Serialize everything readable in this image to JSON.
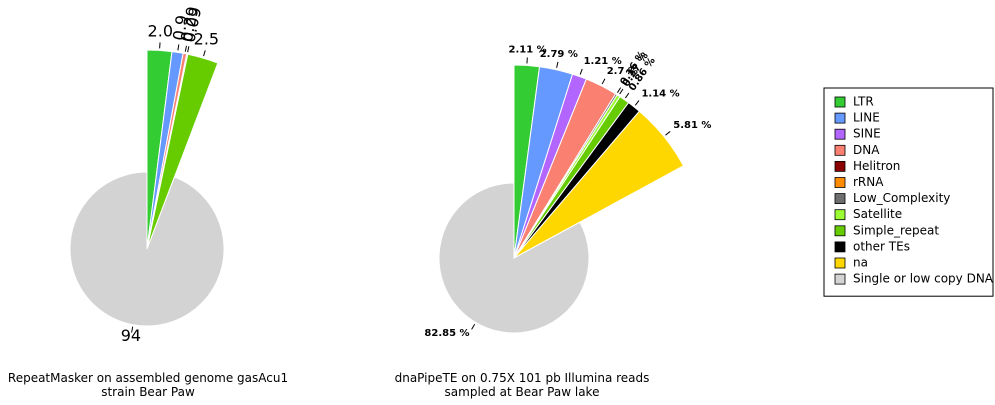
{
  "chart_data": [
    {
      "type": "pie",
      "title": "RepeatMasker on assembled genome gasAcu1\nstrain Bear Paw",
      "categories": [
        "LTR",
        "LINE",
        "DNA",
        "rRNA",
        "Simple_repeat",
        "Single or low copy DNA"
      ],
      "values": [
        2.0,
        0.9,
        0.29,
        0.09,
        2.5,
        94
      ],
      "value_labels": [
        "2.0",
        "0.9",
        "0.29",
        "0.09",
        "2.5",
        "94"
      ]
    },
    {
      "type": "pie",
      "title": "dnaPipeTE on 0.75X 101 pb Illumina reads\nsampled at Bear Paw lake",
      "categories": [
        "LTR",
        "LINE",
        "SINE",
        "DNA",
        "Low_Complexity",
        "Satellite",
        "Simple_repeat",
        "other TEs",
        "na",
        "Single or low copy DNA"
      ],
      "values": [
        2.11,
        2.79,
        1.21,
        2.7,
        0.16,
        0.27,
        0.86,
        1.14,
        5.81,
        82.85
      ],
      "value_labels": [
        "2.11 %",
        "2.79 %",
        "1.21 %",
        "2.7 %",
        "0.16 %",
        "0.27 %",
        "0.86 %",
        "1.14 %",
        "5.81 %",
        "82.85 %"
      ]
    }
  ],
  "legend": {
    "entries": [
      {
        "name": "LTR",
        "color": "#33cc33"
      },
      {
        "name": "LINE",
        "color": "#6699ff"
      },
      {
        "name": "SINE",
        "color": "#b366ff"
      },
      {
        "name": "DNA",
        "color": "#fa8072"
      },
      {
        "name": "Helitron",
        "color": "#8b0000"
      },
      {
        "name": "rRNA",
        "color": "#ff8c00"
      },
      {
        "name": "Low_Complexity",
        "color": "#6e6e6e"
      },
      {
        "name": "Satellite",
        "color": "#99ff33"
      },
      {
        "name": "Simple_repeat",
        "color": "#66cc00"
      },
      {
        "name": "other TEs",
        "color": "#000000"
      },
      {
        "name": "na",
        "color": "#ffd700"
      },
      {
        "name": "Single or low copy DNA",
        "color": "#d3d3d3"
      }
    ]
  }
}
